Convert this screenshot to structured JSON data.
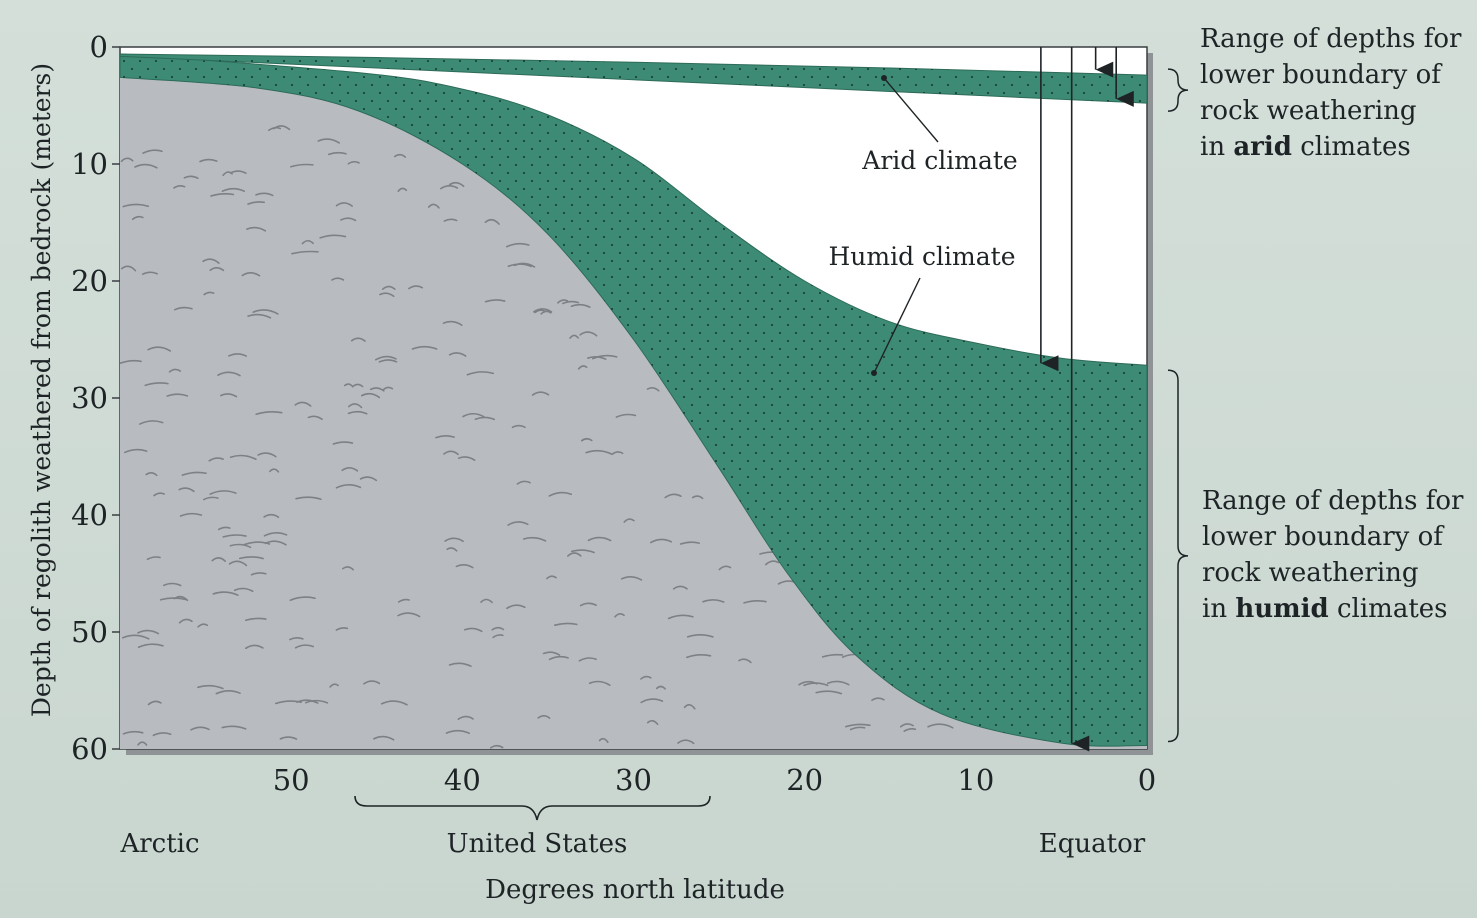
{
  "chart_data": {
    "type": "area",
    "xlabel": "Degrees north latitude",
    "ylabel": "Depth of regolith weathered from bedrock (meters)",
    "xlim": [
      60,
      0
    ],
    "ylim": [
      0,
      60
    ],
    "x_ticks": [
      "50",
      "40",
      "30",
      "20",
      "10",
      "0"
    ],
    "y_ticks": [
      "0",
      "10",
      "20",
      "30",
      "40",
      "50",
      "60"
    ],
    "x_regions": [
      {
        "label": "Arctic"
      },
      {
        "label": "United States"
      },
      {
        "label": "Equator"
      }
    ],
    "series": [
      {
        "name": "Arid climate",
        "points_upper": [
          [
            60,
            0.6
          ],
          [
            45,
            0.9
          ],
          [
            30,
            1.3
          ],
          [
            15,
            1.8
          ],
          [
            0,
            2.4
          ]
        ],
        "points_lower": [
          [
            60,
            0.8
          ],
          [
            45,
            1.8
          ],
          [
            30,
            2.8
          ],
          [
            15,
            3.8
          ],
          [
            0,
            4.8
          ]
        ]
      },
      {
        "name": "Humid climate",
        "points_upper": [
          [
            60,
            0.6
          ],
          [
            46,
            2.2
          ],
          [
            40,
            3.6
          ],
          [
            35,
            5.8
          ],
          [
            30,
            9.5
          ],
          [
            25,
            15
          ],
          [
            20,
            20
          ],
          [
            15,
            23.5
          ],
          [
            10,
            25.3
          ],
          [
            5,
            26.6
          ],
          [
            0,
            27.2
          ]
        ],
        "points_lower": [
          [
            60,
            2.6
          ],
          [
            52,
            3.5
          ],
          [
            46,
            5.5
          ],
          [
            40,
            10
          ],
          [
            35,
            16
          ],
          [
            30,
            25
          ],
          [
            25,
            36
          ],
          [
            21,
            45
          ],
          [
            17,
            52
          ],
          [
            12,
            57
          ],
          [
            5,
            59.5
          ],
          [
            0,
            59.7
          ]
        ]
      }
    ],
    "annotations": {
      "arid_range": {
        "lines": [
          "Range of depths for",
          "lower boundary of",
          "rock weathering",
          "in"
        ],
        "emph": "arid",
        "tail": "climates",
        "y_range": [
          2.4,
          4.8
        ]
      },
      "humid_range": {
        "lines": [
          "Range of depths for",
          "lower boundary of",
          "rock weathering",
          "in"
        ],
        "emph": "humid",
        "tail": "climates",
        "y_range": [
          27.2,
          59.7
        ]
      }
    },
    "colors": {
      "band": "#3d8b74",
      "rock": "#b8bcc0",
      "rock_mark": "#7d8186",
      "sky": "#ffffff"
    }
  }
}
